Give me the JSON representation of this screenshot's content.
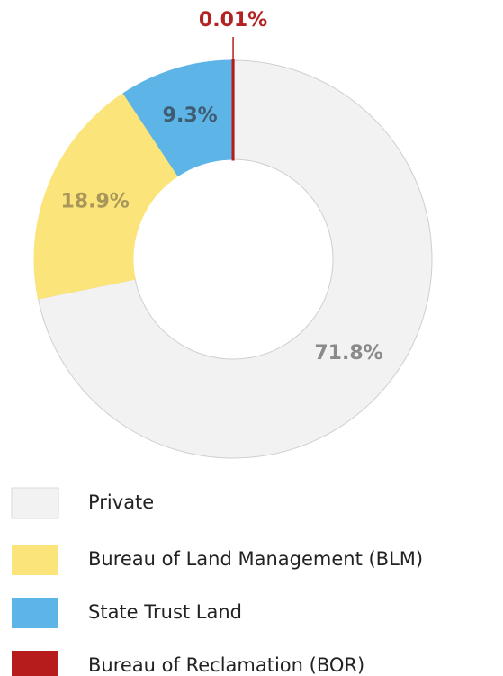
{
  "chart_data": {
    "type": "donut",
    "categories": [
      "Private",
      "Bureau of Land Management (BLM)",
      "State Trust Land",
      "Bureau of Reclamation (BOR)"
    ],
    "values": [
      71.8,
      18.9,
      9.3,
      0.01
    ],
    "value_labels": [
      "71.8%",
      "18.9%",
      "9.3%",
      "0.01%"
    ],
    "colors": [
      "#f2f2f2",
      "#fbe47a",
      "#5db4e6",
      "#b71c1c"
    ],
    "legend": "bottom"
  }
}
